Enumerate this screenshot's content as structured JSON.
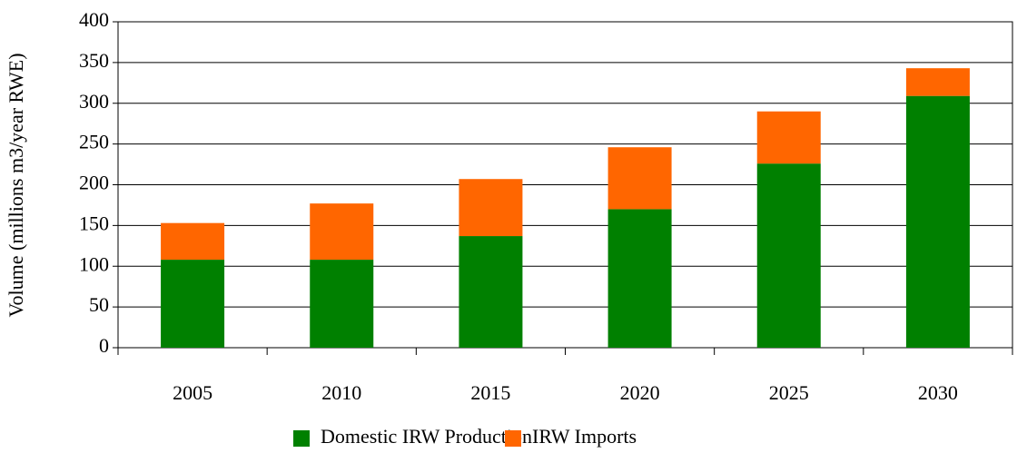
{
  "chart_data": {
    "type": "stacked_bar",
    "y_label": "Volume (millions m3/year RWE)",
    "categories": [
      "2005",
      "2010",
      "2015",
      "2020",
      "2025",
      "2030"
    ],
    "series": [
      {
        "name": "Domestic IRW Production",
        "color": "#008000",
        "values": [
          108,
          108,
          137,
          170,
          226,
          309
        ]
      },
      {
        "name": "IRW Imports",
        "color": "#ff6600",
        "values": [
          45,
          69,
          70,
          76,
          64,
          34
        ]
      }
    ],
    "ylim": [
      0,
      400
    ],
    "yticks": [
      0,
      50,
      100,
      150,
      200,
      250,
      300,
      350,
      400
    ],
    "grid": true,
    "legend": "bottom"
  }
}
